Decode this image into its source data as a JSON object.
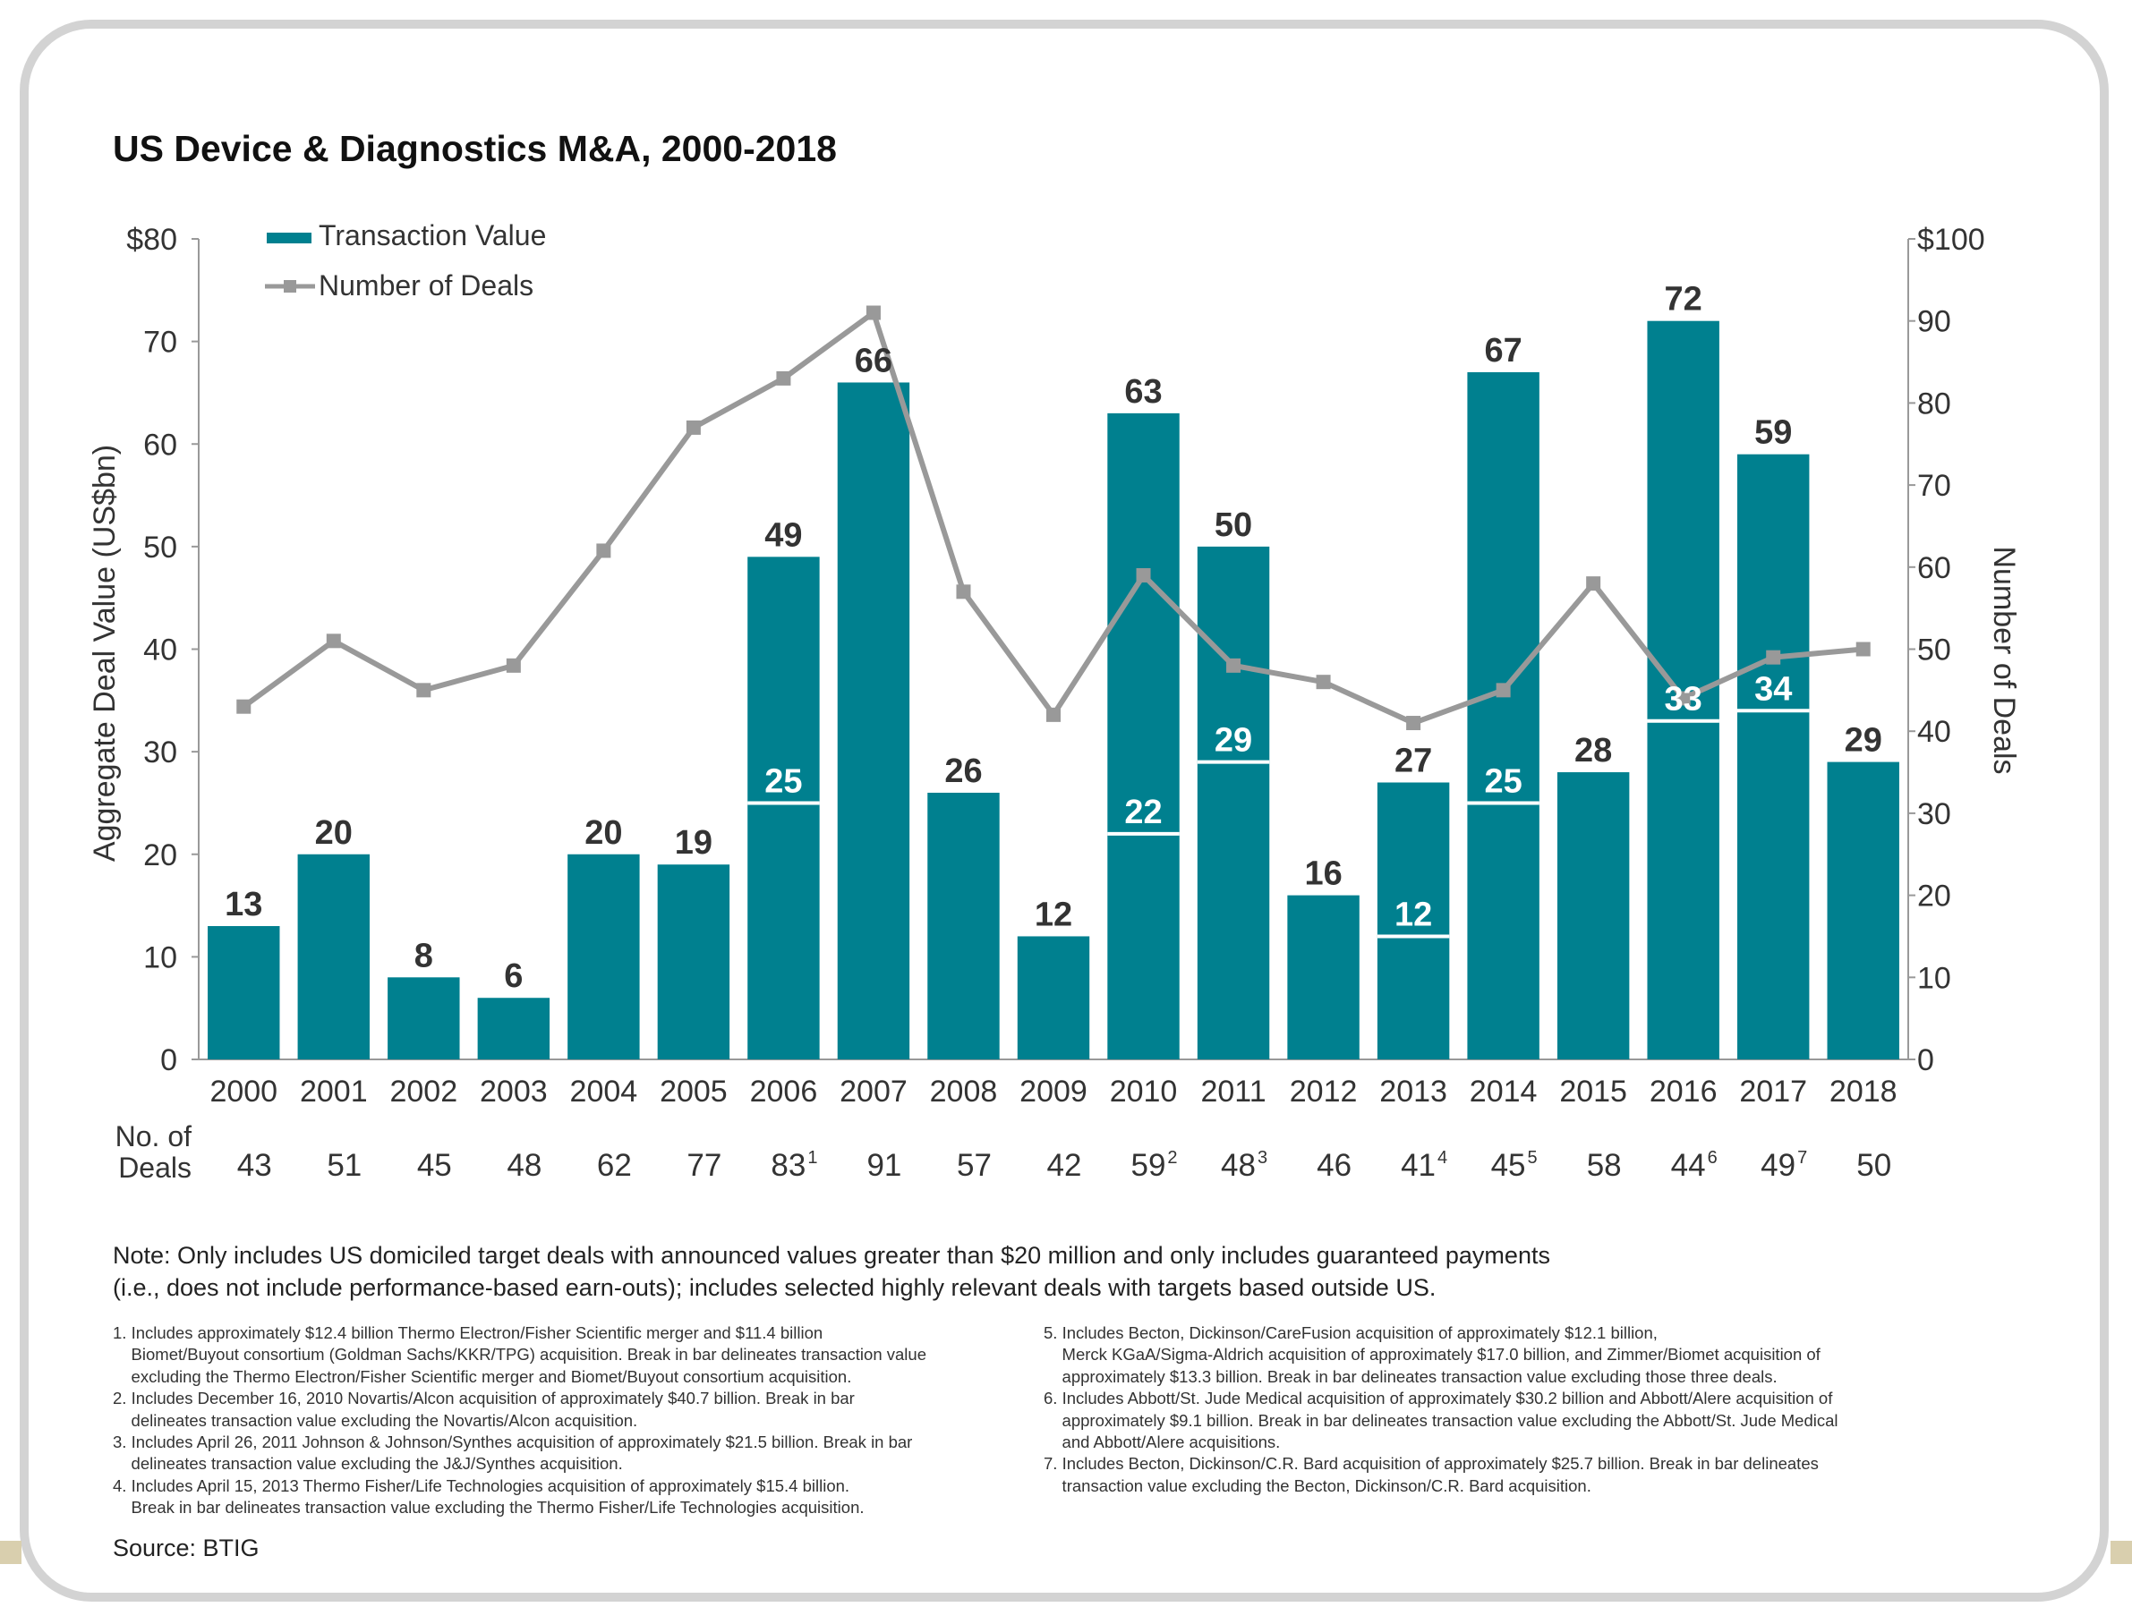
{
  "chart_data": {
    "type": "bar+line",
    "title": "US Device & Diagnostics M&A, 2000-2018",
    "categories": [
      "2000",
      "2001",
      "2002",
      "2003",
      "2004",
      "2005",
      "2006",
      "2007",
      "2008",
      "2009",
      "2010",
      "2011",
      "2012",
      "2013",
      "2014",
      "2015",
      "2016",
      "2017",
      "2018"
    ],
    "series": [
      {
        "name": "Transaction Value",
        "type": "bar",
        "axis": "left",
        "color": "#00808f",
        "values": [
          13,
          20,
          8,
          6,
          20,
          19,
          49,
          66,
          26,
          12,
          63,
          50,
          16,
          27,
          67,
          28,
          72,
          59,
          29
        ],
        "break_values": [
          null,
          null,
          null,
          null,
          null,
          null,
          25,
          null,
          null,
          null,
          22,
          29,
          null,
          12,
          25,
          null,
          33,
          34,
          null
        ]
      },
      {
        "name": "Number of Deals",
        "type": "line",
        "axis": "right",
        "color": "#999999",
        "values": [
          43,
          51,
          45,
          48,
          62,
          77,
          83,
          91,
          57,
          42,
          59,
          48,
          46,
          41,
          45,
          58,
          44,
          49,
          50
        ]
      }
    ],
    "y_left": {
      "label": "Aggregate Deal Value (US$bn)",
      "range": [
        0,
        80
      ],
      "ticks": [
        "0",
        "10",
        "20",
        "30",
        "40",
        "50",
        "60",
        "70",
        "$80"
      ]
    },
    "y_right": {
      "label": "Number of Deals",
      "range": [
        0,
        100
      ],
      "ticks": [
        "0",
        "10",
        "20",
        "30",
        "40",
        "50",
        "60",
        "70",
        "80",
        "90",
        "$100"
      ]
    },
    "legend_position": "top-left",
    "grid": false,
    "deals_row": {
      "label_line1": "No. of",
      "label_line2": "Deals",
      "values": [
        "43",
        "51",
        "45",
        "48",
        "62",
        "77",
        "83",
        "91",
        "57",
        "42",
        "59",
        "48",
        "46",
        "41",
        "45",
        "58",
        "44",
        "49",
        "50"
      ],
      "superscripts": [
        "",
        "",
        "",
        "",
        "",
        "",
        "1",
        "",
        "",
        "",
        "2",
        "3",
        "",
        "4",
        "5",
        "",
        "6",
        "7",
        ""
      ]
    }
  },
  "note": {
    "line1": "Note: Only includes US domiciled target deals with announced values greater than $20 million and only includes guaranteed payments",
    "line2": "(i.e., does not include performance-based earn-outs); includes selected highly relevant deals with targets based outside US."
  },
  "footnotes_left": [
    "1. Includes approximately $12.4 billion Thermo Electron/Fisher Scientific merger and $11.4 billion",
    "    Biomet/Buyout consortium (Goldman Sachs/KKR/TPG) acquisition. Break in bar delineates transaction value",
    "    excluding the Thermo Electron/Fisher Scientific merger and Biomet/Buyout consortium acquisition.",
    "2. Includes December 16, 2010 Novartis/Alcon acquisition of approximately $40.7 billion. Break in bar",
    "    delineates transaction value excluding the Novartis/Alcon acquisition.",
    "3. Includes April 26, 2011 Johnson & Johnson/Synthes acquisition of approximately $21.5 billion. Break in bar",
    "    delineates transaction value excluding the J&J/Synthes acquisition.",
    "4. Includes April 15, 2013 Thermo Fisher/Life Technologies acquisition of approximately $15.4 billion.",
    "    Break in bar delineates transaction value excluding the Thermo Fisher/Life Technologies acquisition."
  ],
  "footnotes_right": [
    "5. Includes Becton, Dickinson/CareFusion acquisition of approximately $12.1 billion,",
    "    Merck KGaA/Sigma-Aldrich acquisition of approximately $17.0 billion, and Zimmer/Biomet acquisition of",
    "    approximately $13.3 billion. Break in bar delineates transaction value excluding those three deals.",
    "6. Includes Abbott/St. Jude Medical acquisition of approximately $30.2 billion and Abbott/Alere acquisition of",
    "    approximately $9.1 billion. Break in bar delineates transaction value excluding the Abbott/St. Jude Medical",
    "    and Abbott/Alere acquisitions.",
    "7. Includes Becton, Dickinson/C.R. Bard acquisition of approximately $25.7 billion. Break in bar delineates",
    "    transaction value excluding the Becton, Dickinson/C.R. Bard acquisition."
  ],
  "source": "Source: BTIG"
}
